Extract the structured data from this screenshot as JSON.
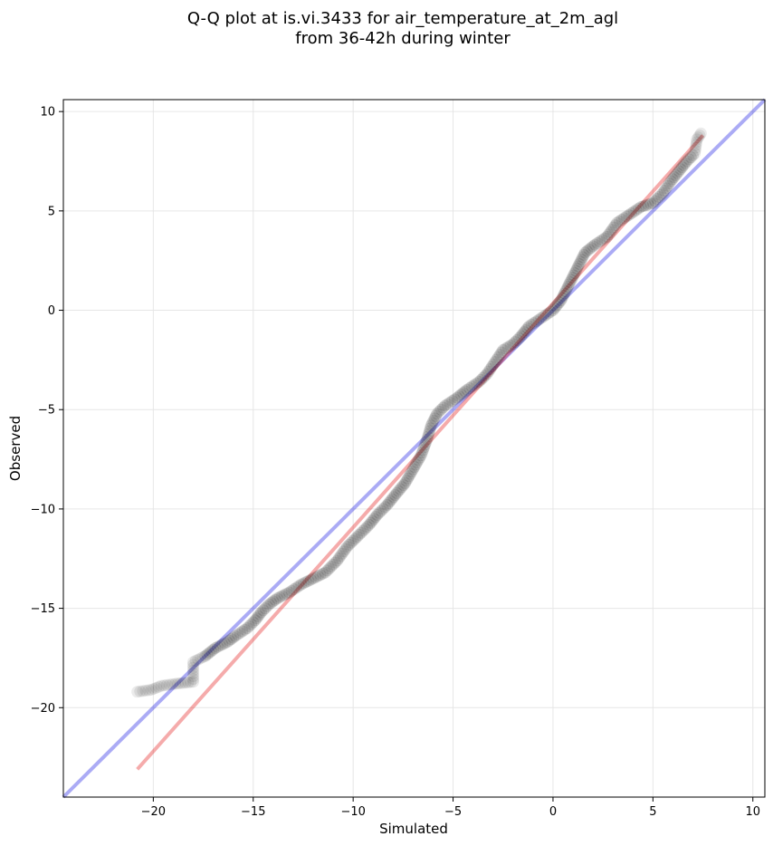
{
  "chart_data": {
    "type": "scatter",
    "title": "Q-Q plot at is.vi.3433 for air_temperature_at_2m_agl",
    "subtitle": "from 36-42h during winter",
    "xlabel": "Simulated",
    "ylabel": "Observed",
    "xlim": [
      -24.5,
      10.6
    ],
    "ylim": [
      -24.5,
      10.6
    ],
    "grid": true,
    "x_ticks": [
      -20,
      -15,
      -10,
      -5,
      0,
      5,
      10
    ],
    "y_ticks": [
      -20,
      -15,
      -10,
      -5,
      0,
      5,
      10
    ],
    "x_tick_labels": [
      "−20",
      "−15",
      "−10",
      "−5",
      "0",
      "5",
      "10"
    ],
    "y_tick_labels": [
      "−20",
      "−15",
      "−10",
      "−5",
      "0",
      "5",
      "10"
    ],
    "reference_line": {
      "points": [
        [
          -24.5,
          -24.5
        ],
        [
          10.6,
          10.6
        ]
      ],
      "color": "#0000e0"
    },
    "fit_line": {
      "points": [
        [
          -20.8,
          -23.1
        ],
        [
          7.5,
          8.8
        ]
      ],
      "color": "#e00000"
    },
    "quantile_curve": [
      [
        -20.8,
        -19.2
      ],
      [
        -20.1,
        -19.1
      ],
      [
        -19.6,
        -18.9
      ],
      [
        -18.9,
        -18.8
      ],
      [
        -18.0,
        -18.7
      ],
      [
        -18.0,
        -17.7
      ],
      [
        -17.4,
        -17.4
      ],
      [
        -16.9,
        -17.0
      ],
      [
        -16.3,
        -16.7
      ],
      [
        -15.9,
        -16.4
      ],
      [
        -15.3,
        -16.0
      ],
      [
        -14.9,
        -15.6
      ],
      [
        -14.6,
        -15.2
      ],
      [
        -14.2,
        -14.8
      ],
      [
        -13.8,
        -14.5
      ],
      [
        -13.2,
        -14.2
      ],
      [
        -12.6,
        -13.8
      ],
      [
        -12.0,
        -13.5
      ],
      [
        -11.4,
        -13.2
      ],
      [
        -10.8,
        -12.6
      ],
      [
        -10.3,
        -11.9
      ],
      [
        -9.7,
        -11.3
      ],
      [
        -9.2,
        -10.8
      ],
      [
        -8.8,
        -10.3
      ],
      [
        -8.3,
        -9.8
      ],
      [
        -7.9,
        -9.3
      ],
      [
        -7.4,
        -8.7
      ],
      [
        -7.0,
        -8.0
      ],
      [
        -6.6,
        -7.3
      ],
      [
        -6.3,
        -6.5
      ],
      [
        -6.1,
        -5.8
      ],
      [
        -5.8,
        -5.2
      ],
      [
        -5.4,
        -4.8
      ],
      [
        -4.8,
        -4.4
      ],
      [
        -4.3,
        -4.0
      ],
      [
        -3.7,
        -3.6
      ],
      [
        -3.3,
        -3.2
      ],
      [
        -2.9,
        -2.6
      ],
      [
        -2.5,
        -2.0
      ],
      [
        -2.0,
        -1.7
      ],
      [
        -1.6,
        -1.3
      ],
      [
        -1.2,
        -0.8
      ],
      [
        -0.6,
        -0.4
      ],
      [
        0.0,
        0.0
      ],
      [
        0.4,
        0.5
      ],
      [
        0.8,
        1.3
      ],
      [
        1.2,
        2.1
      ],
      [
        1.6,
        2.9
      ],
      [
        2.1,
        3.3
      ],
      [
        2.7,
        3.7
      ],
      [
        3.2,
        4.4
      ],
      [
        3.8,
        4.8
      ],
      [
        4.4,
        5.2
      ],
      [
        5.0,
        5.4
      ],
      [
        5.5,
        5.9
      ],
      [
        5.9,
        6.5
      ],
      [
        6.3,
        7.0
      ],
      [
        6.7,
        7.5
      ],
      [
        7.1,
        7.9
      ],
      [
        7.2,
        8.6
      ],
      [
        7.4,
        8.9
      ]
    ]
  }
}
